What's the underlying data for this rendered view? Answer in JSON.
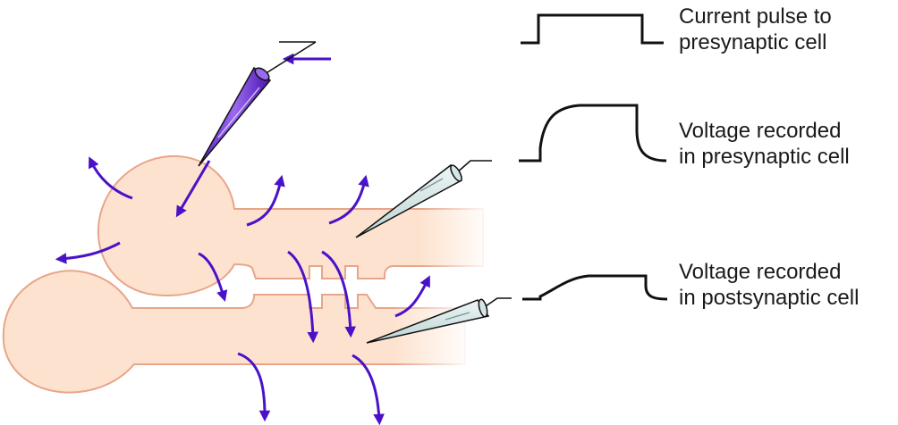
{
  "labels": {
    "current_pulse": [
      "Current pulse to",
      "presynaptic cell"
    ],
    "voltage_pre": [
      "Voltage recorded",
      "in presynaptic cell"
    ],
    "voltage_post": [
      "Voltage recorded",
      "in postsynaptic cell"
    ]
  },
  "colors": {
    "cell_fill": "#fde3cf",
    "cell_outline": "#e8a58a",
    "current_arrow": "#4a12c8",
    "stim_electrode": "#7a3fe0",
    "record_electrode": "#d6e6e6",
    "trace": "#111111"
  }
}
